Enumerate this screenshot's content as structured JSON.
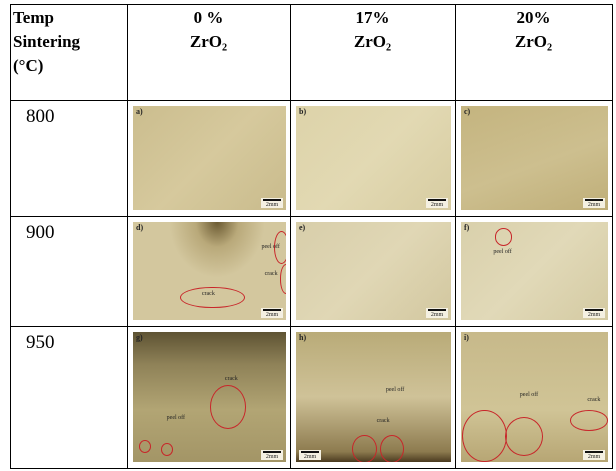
{
  "table": {
    "header": [
      [
        "Temp",
        "Sintering",
        "(°C)"
      ],
      [
        "0 %",
        "ZrO₂"
      ],
      [
        "17%",
        "ZrO₂"
      ],
      [
        "20%",
        "ZrO₂"
      ]
    ],
    "rows": [
      {
        "temp": "800",
        "images": [
          {
            "label": "a)",
            "scale": "2mm",
            "notes": []
          },
          {
            "label": "b)",
            "scale": "2mm",
            "notes": []
          },
          {
            "label": "c)",
            "scale": "2mm",
            "notes": []
          }
        ]
      },
      {
        "temp": "900",
        "images": [
          {
            "label": "d)",
            "scale": "2mm",
            "notes": [
              "peel off",
              "crack",
              "crack"
            ]
          },
          {
            "label": "e)",
            "scale": "2mm",
            "notes": []
          },
          {
            "label": "f)",
            "scale": "2mm",
            "notes": [
              "peel off"
            ]
          }
        ]
      },
      {
        "temp": "950",
        "images": [
          {
            "label": "g)",
            "scale": "2mm",
            "notes": [
              "peel off",
              "crack"
            ]
          },
          {
            "label": "h)",
            "scale": "2mm",
            "notes": [
              "peel off",
              "crack"
            ]
          },
          {
            "label": "i)",
            "scale": "2mm",
            "notes": [
              "peel off",
              "crack"
            ]
          }
        ]
      }
    ]
  }
}
